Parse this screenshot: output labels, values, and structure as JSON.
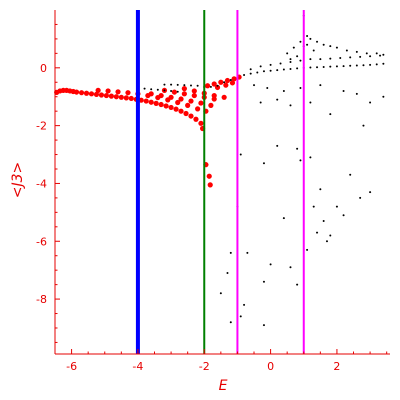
{
  "chart_data": {
    "type": "scatter",
    "title": "",
    "xlabel": "E",
    "ylabel": "<J3>",
    "xlim": [
      -6.5,
      3.6
    ],
    "ylim": [
      -9.9,
      2.0
    ],
    "x_ticks": [
      -6,
      -4,
      -2,
      0,
      2
    ],
    "y_ticks": [
      0,
      -2,
      -4,
      -6,
      -8
    ],
    "grid": false,
    "legend": "none",
    "axis_color": "#e60000",
    "vertical_lines": [
      {
        "x": -4,
        "color": "#0000ff"
      },
      {
        "x": -2,
        "color": "#008000"
      },
      {
        "x": -1,
        "color": "#ff00ff"
      },
      {
        "x": 1,
        "color": "#ff00ff"
      }
    ],
    "series": [
      {
        "color": "#ff0000",
        "marker": "large",
        "points": [
          [
            -6.45,
            -0.85
          ],
          [
            -6.35,
            -0.8
          ],
          [
            -6.25,
            -0.78
          ],
          [
            -6.15,
            -0.78
          ],
          [
            -6.05,
            -0.8
          ],
          [
            -5.95,
            -0.82
          ],
          [
            -5.85,
            -0.84
          ],
          [
            -5.7,
            -0.86
          ],
          [
            -5.55,
            -0.88
          ],
          [
            -5.4,
            -0.9
          ],
          [
            -5.25,
            -0.92
          ],
          [
            -5.1,
            -0.94
          ],
          [
            -4.95,
            -0.96
          ],
          [
            -4.8,
            -0.98
          ],
          [
            -4.65,
            -1.0
          ],
          [
            -4.5,
            -1.02
          ],
          [
            -4.35,
            -1.04
          ],
          [
            -4.2,
            -1.06
          ],
          [
            -4.05,
            -1.09
          ],
          [
            -3.9,
            -1.12
          ],
          [
            -3.75,
            -1.15
          ],
          [
            -3.6,
            -1.19
          ],
          [
            -3.45,
            -1.23
          ],
          [
            -3.3,
            -1.27
          ],
          [
            -3.15,
            -1.32
          ],
          [
            -3.0,
            -1.37
          ],
          [
            -2.85,
            -1.43
          ],
          [
            -2.7,
            -1.5
          ],
          [
            -2.55,
            -1.58
          ],
          [
            -2.4,
            -1.67
          ],
          [
            -2.25,
            -1.78
          ],
          [
            -2.1,
            -1.92
          ],
          [
            -2.05,
            -2.1
          ],
          [
            -5.2,
            -0.78
          ],
          [
            -4.9,
            -0.8
          ],
          [
            -4.6,
            -0.83
          ],
          [
            -4.3,
            -0.86
          ],
          [
            -4.0,
            -0.9
          ],
          [
            -3.7,
            -0.96
          ],
          [
            -3.4,
            -1.03
          ],
          [
            -3.1,
            -1.11
          ],
          [
            -2.8,
            -1.2
          ],
          [
            -2.5,
            -1.3
          ],
          [
            -2.2,
            -1.42
          ],
          [
            -1.95,
            -1.5
          ],
          [
            -3.6,
            -0.9
          ],
          [
            -3.3,
            -0.96
          ],
          [
            -3.0,
            -1.02
          ],
          [
            -2.7,
            -1.08
          ],
          [
            -2.4,
            -1.15
          ],
          [
            -2.1,
            -1.22
          ],
          [
            -1.8,
            -1.3
          ],
          [
            -3.2,
            -0.78
          ],
          [
            -2.9,
            -0.84
          ],
          [
            -2.6,
            -0.9
          ],
          [
            -2.3,
            -0.96
          ],
          [
            -2.0,
            -1.02
          ],
          [
            -1.7,
            -1.08
          ],
          [
            -2.6,
            -0.72
          ],
          [
            -2.3,
            -0.8
          ],
          [
            -2.0,
            -0.88
          ],
          [
            -1.7,
            -0.96
          ],
          [
            -1.4,
            -1.02
          ],
          [
            -1.9,
            -0.62
          ],
          [
            -1.7,
            -0.56
          ],
          [
            -1.5,
            -0.5
          ],
          [
            -1.3,
            -0.44
          ],
          [
            -1.1,
            -0.38
          ],
          [
            -0.95,
            -0.32
          ],
          [
            -1.6,
            -0.68
          ],
          [
            -1.35,
            -0.6
          ],
          [
            -1.15,
            -0.52
          ],
          [
            -1.85,
            -3.75
          ],
          [
            -1.82,
            -4.05
          ],
          [
            -1.95,
            -3.35
          ]
        ]
      },
      {
        "color": "#000000",
        "marker": "small",
        "points": [
          [
            -4.0,
            -0.7
          ],
          [
            -3.8,
            -0.72
          ],
          [
            -3.6,
            -0.74
          ],
          [
            -3.4,
            -0.76
          ],
          [
            -3.2,
            -0.78
          ],
          [
            -3.0,
            -0.8
          ],
          [
            -2.8,
            -0.83
          ],
          [
            -3.2,
            -0.58
          ],
          [
            -3.0,
            -0.58
          ],
          [
            -2.8,
            -0.59
          ],
          [
            -2.6,
            -0.6
          ],
          [
            -2.4,
            -0.61
          ],
          [
            -2.2,
            -0.62
          ],
          [
            -2.0,
            -0.64
          ],
          [
            -2.0,
            -0.68
          ],
          [
            -1.8,
            -0.66
          ],
          [
            -1.6,
            -0.62
          ],
          [
            -1.4,
            -0.5
          ],
          [
            -1.2,
            -0.42
          ],
          [
            -1.0,
            -0.34
          ],
          [
            -0.8,
            -0.25
          ],
          [
            -0.6,
            -0.2
          ],
          [
            -0.4,
            -0.16
          ],
          [
            -0.2,
            -0.12
          ],
          [
            0.0,
            -0.1
          ],
          [
            0.2,
            -0.08
          ],
          [
            0.4,
            -0.06
          ],
          [
            0.6,
            -0.04
          ],
          [
            0.8,
            -0.02
          ],
          [
            1.0,
            0.0
          ],
          [
            1.2,
            0.01
          ],
          [
            1.4,
            0.02
          ],
          [
            1.6,
            0.03
          ],
          [
            1.8,
            0.04
          ],
          [
            2.0,
            0.05
          ],
          [
            2.2,
            0.06
          ],
          [
            2.4,
            0.07
          ],
          [
            2.6,
            0.08
          ],
          [
            2.8,
            0.09
          ],
          [
            3.0,
            0.1
          ],
          [
            3.2,
            0.12
          ],
          [
            3.4,
            0.14
          ],
          [
            -0.6,
            -0.05
          ],
          [
            -0.3,
            0.05
          ],
          [
            0.0,
            0.1
          ],
          [
            0.3,
            0.15
          ],
          [
            0.6,
            0.2
          ],
          [
            0.9,
            0.25
          ],
          [
            1.2,
            0.3
          ],
          [
            1.5,
            0.3
          ],
          [
            1.8,
            0.32
          ],
          [
            2.1,
            0.34
          ],
          [
            2.4,
            0.36
          ],
          [
            2.7,
            0.38
          ],
          [
            3.0,
            0.4
          ],
          [
            3.3,
            0.42
          ],
          [
            0.5,
            0.5
          ],
          [
            0.7,
            0.7
          ],
          [
            0.9,
            0.9
          ],
          [
            1.1,
            1.1
          ],
          [
            1.2,
            1.0
          ],
          [
            1.4,
            0.9
          ],
          [
            1.6,
            0.8
          ],
          [
            1.8,
            0.75
          ],
          [
            2.0,
            0.7
          ],
          [
            2.3,
            0.6
          ],
          [
            2.6,
            0.55
          ],
          [
            2.9,
            0.5
          ],
          [
            3.2,
            0.5
          ],
          [
            3.4,
            0.45
          ],
          [
            1.0,
            0.75
          ],
          [
            1.1,
            0.8
          ],
          [
            1.0,
            1.8
          ],
          [
            0.6,
            0.3
          ],
          [
            0.8,
            0.4
          ],
          [
            1.3,
            0.6
          ],
          [
            -0.5,
            -0.6
          ],
          [
            -0.3,
            -1.2
          ],
          [
            -0.1,
            -0.7
          ],
          [
            0.2,
            -1.1
          ],
          [
            0.4,
            -0.8
          ],
          [
            0.6,
            -1.3
          ],
          [
            0.9,
            -0.7
          ],
          [
            1.2,
            -1.2
          ],
          [
            1.5,
            -0.6
          ],
          [
            1.8,
            -1.6
          ],
          [
            2.2,
            -0.8
          ],
          [
            2.6,
            -0.9
          ],
          [
            3.0,
            -1.2
          ],
          [
            3.4,
            -1.0
          ],
          [
            -0.2,
            -3.3
          ],
          [
            0.2,
            -2.7
          ],
          [
            0.8,
            -2.8
          ],
          [
            0.9,
            -3.2
          ],
          [
            1.2,
            -3.1
          ],
          [
            1.5,
            -4.2
          ],
          [
            1.3,
            -4.8
          ],
          [
            1.6,
            -5.3
          ],
          [
            1.8,
            -5.8
          ],
          [
            2.2,
            -5.1
          ],
          [
            2.7,
            -4.5
          ],
          [
            3.0,
            -4.3
          ],
          [
            -0.9,
            -3.0
          ],
          [
            -1.0,
            -4.8
          ],
          [
            -0.7,
            -6.4
          ],
          [
            -1.2,
            -6.4
          ],
          [
            -1.3,
            -7.1
          ],
          [
            -1.5,
            -7.8
          ],
          [
            -1.2,
            -8.8
          ],
          [
            -0.9,
            -8.6
          ],
          [
            -0.8,
            -8.2
          ],
          [
            -0.2,
            -8.9
          ],
          [
            -0.2,
            -7.4
          ],
          [
            0.0,
            -6.8
          ],
          [
            0.4,
            -5.2
          ],
          [
            0.6,
            -6.9
          ],
          [
            0.8,
            -7.5
          ],
          [
            1.1,
            -6.3
          ],
          [
            1.4,
            -5.7
          ],
          [
            1.7,
            -6.0
          ],
          [
            2.0,
            -4.8
          ],
          [
            2.4,
            -3.7
          ],
          [
            2.8,
            -2.0
          ]
        ]
      }
    ]
  }
}
